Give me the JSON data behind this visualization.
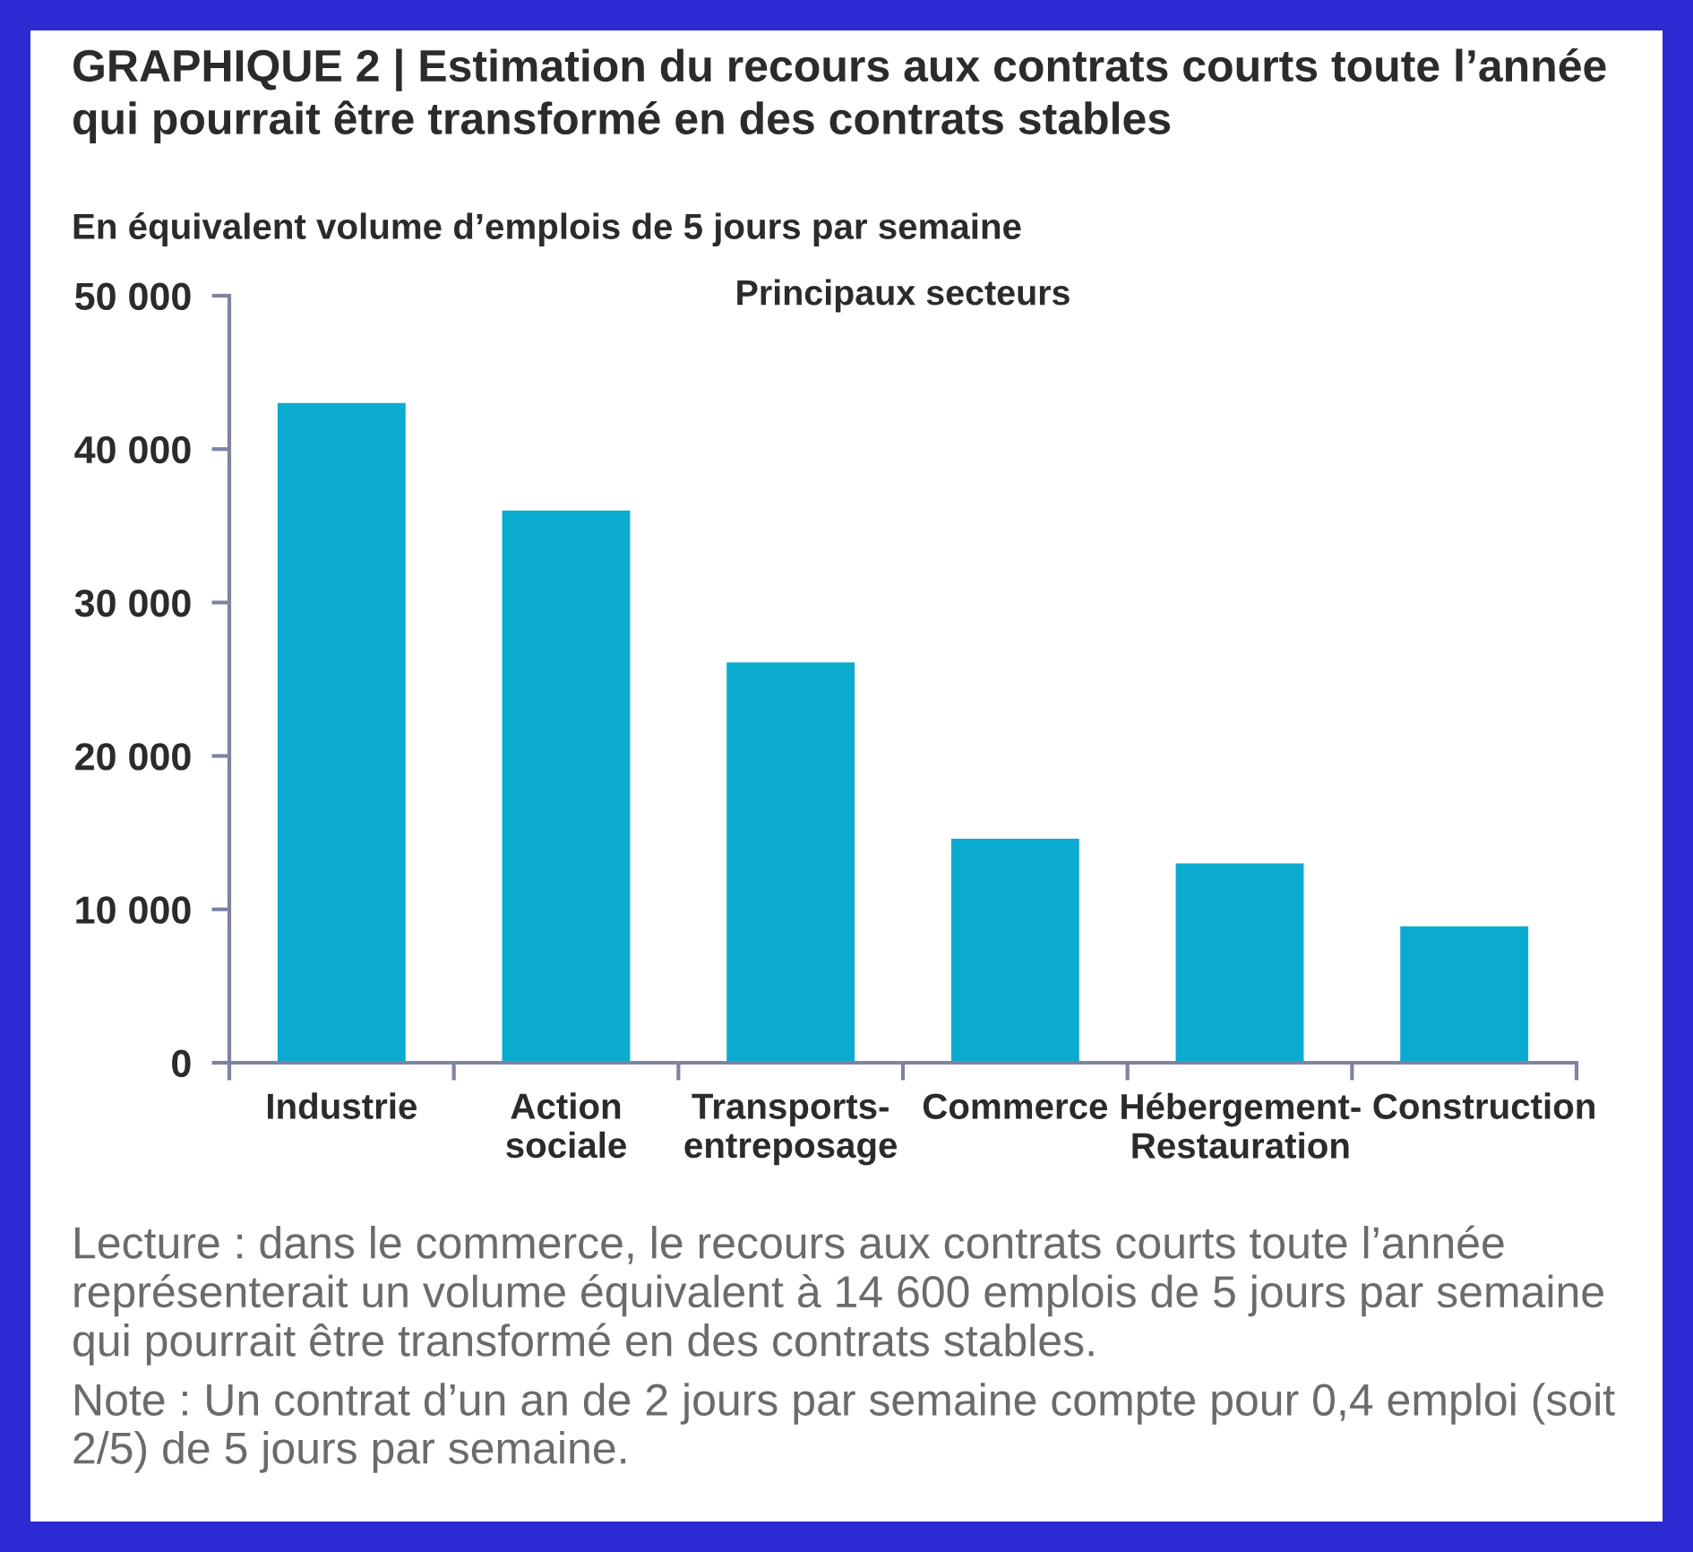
{
  "chart_data": {
    "type": "bar",
    "title": "GRAPHIQUE 2 | Estimation du recours aux contrats courts toute l’année\nqui pourrait être transformé en des contrats stables",
    "subtitle": "Principaux secteurs",
    "ylabel": "En équivalent volume d’emplois de 5 jours par semaine",
    "categories": [
      "Industrie",
      "Action\nsociale",
      "Transports-\nentreposage",
      "Commerce",
      "Hébergement-\nRestauration",
      "Construction"
    ],
    "values": [
      43000,
      36000,
      26100,
      14600,
      13000,
      8900
    ],
    "color": "#0aabcf",
    "ylim": [
      0,
      50000
    ],
    "yticks": [
      0,
      {
        "value": 10000,
        "label": "10 000"
      },
      {
        "value": 20000,
        "label": "20 000"
      },
      {
        "value": 30000,
        "label": "30 000"
      },
      {
        "value": 40000,
        "label": "40 000"
      },
      {
        "value": 50000,
        "label": "50 000"
      }
    ],
    "annotations": [
      "Lecture : dans le commerce, le recours aux contrats courts toute l’année\nreprésenterait un volume équivalent à 14 600 emplois de 5 jours par semaine\nqui pourrait être transformé en des contrats stables.",
      "Note : Un contrat d’un an de 2 jours par semaine compte pour 0,4 emploi (soit\n2/5) de 5 jours par semaine."
    ]
  }
}
